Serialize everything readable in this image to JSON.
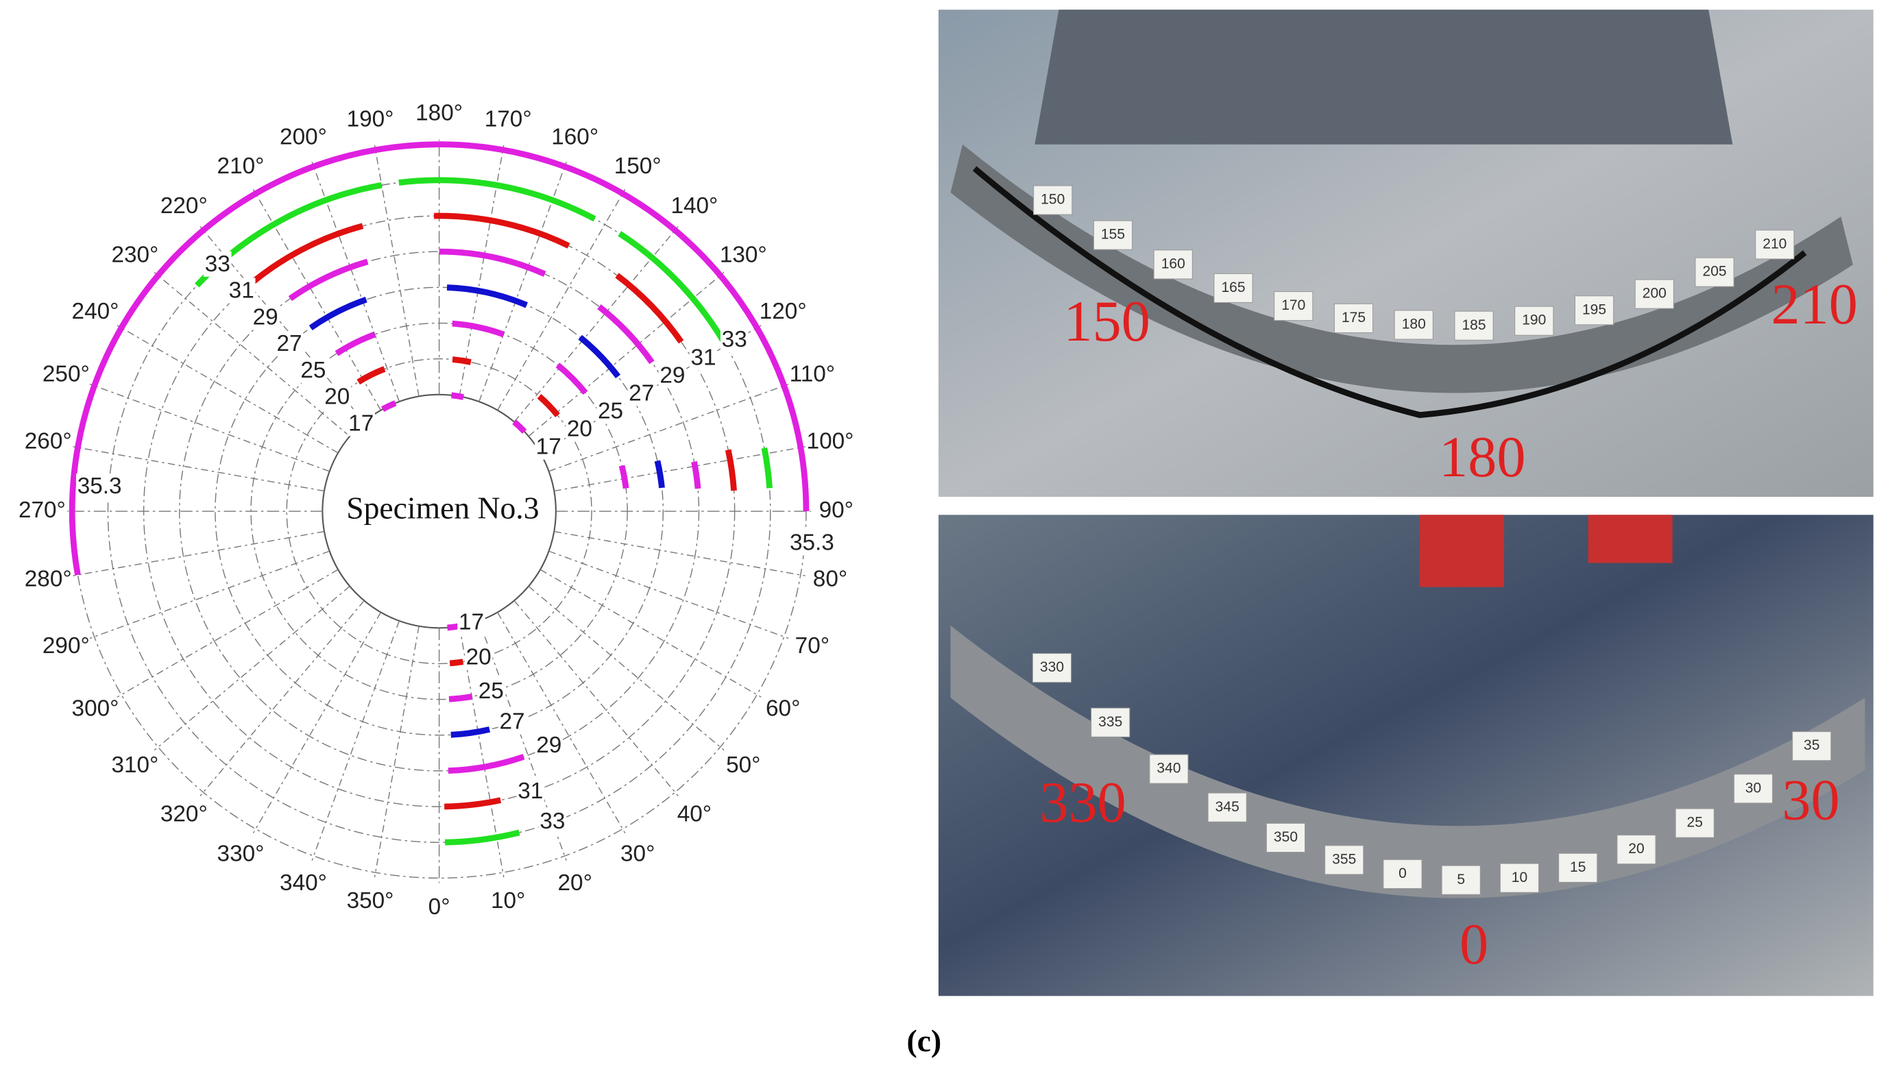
{
  "chart_data": {
    "type": "polar-arc",
    "title": "Specimen No.3",
    "thetaticks": [
      {
        "value": 0,
        "label": "0°"
      },
      {
        "value": 10,
        "label": "10°"
      },
      {
        "value": 20,
        "label": "20°"
      },
      {
        "value": 30,
        "label": "30°"
      },
      {
        "value": 40,
        "label": "40°"
      },
      {
        "value": 50,
        "label": "50°"
      },
      {
        "value": 60,
        "label": "60°"
      },
      {
        "value": 70,
        "label": "70°"
      },
      {
        "value": 80,
        "label": "80°"
      },
      {
        "value": 90,
        "label": "90°"
      },
      {
        "value": 100,
        "label": "100°"
      },
      {
        "value": 110,
        "label": "110°"
      },
      {
        "value": 120,
        "label": "120°"
      },
      {
        "value": 130,
        "label": "130°"
      },
      {
        "value": 140,
        "label": "140°"
      },
      {
        "value": 150,
        "label": "150°"
      },
      {
        "value": 160,
        "label": "160°"
      },
      {
        "value": 170,
        "label": "170°"
      },
      {
        "value": 180,
        "label": "180°"
      },
      {
        "value": 190,
        "label": "190°"
      },
      {
        "value": 200,
        "label": "200°"
      },
      {
        "value": 210,
        "label": "210°"
      },
      {
        "value": 220,
        "label": "220°"
      },
      {
        "value": 230,
        "label": "230°"
      },
      {
        "value": 240,
        "label": "240°"
      },
      {
        "value": 250,
        "label": "250°"
      },
      {
        "value": 260,
        "label": "260°"
      },
      {
        "value": 270,
        "label": "270°"
      },
      {
        "value": 280,
        "label": "280°"
      },
      {
        "value": 290,
        "label": "290°"
      },
      {
        "value": 300,
        "label": "300°"
      },
      {
        "value": 310,
        "label": "310°"
      },
      {
        "value": 320,
        "label": "320°"
      },
      {
        "value": 330,
        "label": "330°"
      },
      {
        "value": 340,
        "label": "340°"
      },
      {
        "value": 350,
        "label": "350°"
      }
    ],
    "grid": true,
    "series": [
      {
        "name": "17",
        "color": "#e020e0",
        "arcs": [
          [
            133,
            140
          ],
          [
            168,
            174
          ],
          [
            202,
            209
          ],
          [
            4,
            10
          ]
        ]
      },
      {
        "name": "20",
        "color": "#e01010",
        "arcs": [
          [
            129,
            139
          ],
          [
            168,
            175
          ],
          [
            201,
            212
          ],
          [
            4,
            9
          ]
        ]
      },
      {
        "name": "25",
        "color": "#e020e0",
        "arcs": [
          [
            97,
            104
          ],
          [
            129,
            141
          ],
          [
            160,
            176
          ],
          [
            200,
            213
          ],
          [
            3,
            10
          ]
        ]
      },
      {
        "name": "27",
        "color": "#1010d0",
        "arcs": [
          [
            96,
            103
          ],
          [
            127,
            141
          ],
          [
            157,
            178
          ],
          [
            199,
            215
          ],
          [
            3,
            13
          ]
        ]
      },
      {
        "name": "29",
        "color": "#e020e0",
        "arcs": [
          [
            95,
            101
          ],
          [
            125,
            142
          ],
          [
            156,
            180
          ],
          [
            196,
            215
          ],
          [
            2,
            19
          ]
        ]
      },
      {
        "name": "31",
        "color": "#e01010",
        "arcs": [
          [
            94,
            102
          ],
          [
            125,
            143
          ],
          [
            154,
            181
          ],
          [
            195,
            220
          ],
          [
            1,
            12
          ]
        ]
      },
      {
        "name": "33",
        "color": "#20e020",
        "arcs": [
          [
            94,
            101
          ],
          [
            121,
            147
          ],
          [
            152,
            187
          ],
          [
            190,
            227
          ],
          [
            1,
            14
          ]
        ]
      },
      {
        "name": "35.3",
        "color": "#e020e0",
        "arcs": [
          [
            90,
            280
          ]
        ]
      }
    ]
  },
  "photos": [
    {
      "tags": [
        "150",
        "155",
        "160",
        "165",
        "170",
        "175",
        "180",
        "185",
        "190",
        "195",
        "200",
        "205",
        "210"
      ],
      "labels": [
        "150",
        "180",
        "210"
      ]
    },
    {
      "tags": [
        "330",
        "335",
        "340",
        "345",
        "350",
        "355",
        "0",
        "5",
        "10",
        "15",
        "20",
        "25",
        "30",
        "35"
      ],
      "labels": [
        "330",
        "0",
        "30"
      ]
    }
  ],
  "caption": "(c)"
}
